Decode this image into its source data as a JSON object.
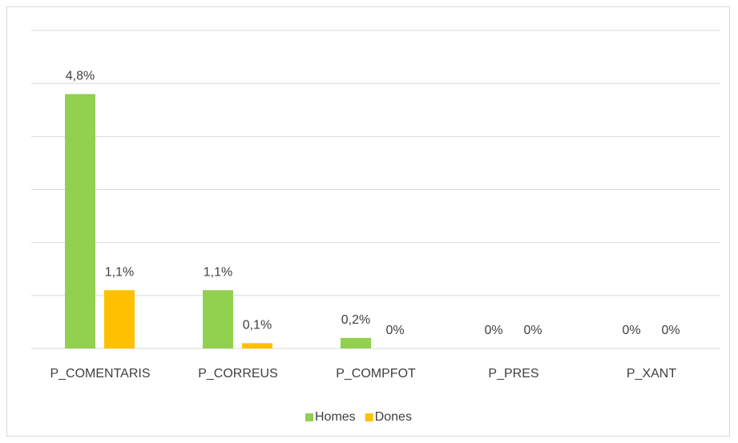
{
  "chart_data": {
    "type": "bar",
    "categories": [
      "P_COMENTARIS",
      "P_CORREUS",
      "P_COMPFOT",
      "P_PRES",
      "P_XANT"
    ],
    "series": [
      {
        "name": "Homes",
        "color": "#92d050",
        "values": [
          4.8,
          1.1,
          0.2,
          0,
          0
        ],
        "value_labels": [
          "4,8%",
          "1,1%",
          "0,2%",
          "0%",
          "0%"
        ]
      },
      {
        "name": "Dones",
        "color": "#ffc000",
        "values": [
          1.1,
          0.1,
          0,
          0,
          0
        ],
        "value_labels": [
          "1,1%",
          "0,1%",
          "0%",
          "0%",
          "0%"
        ]
      }
    ],
    "ylim": [
      0,
      6
    ],
    "yticks": [
      0,
      1,
      2,
      3,
      4,
      5,
      6
    ],
    "grid": true,
    "legend": "bottom"
  }
}
